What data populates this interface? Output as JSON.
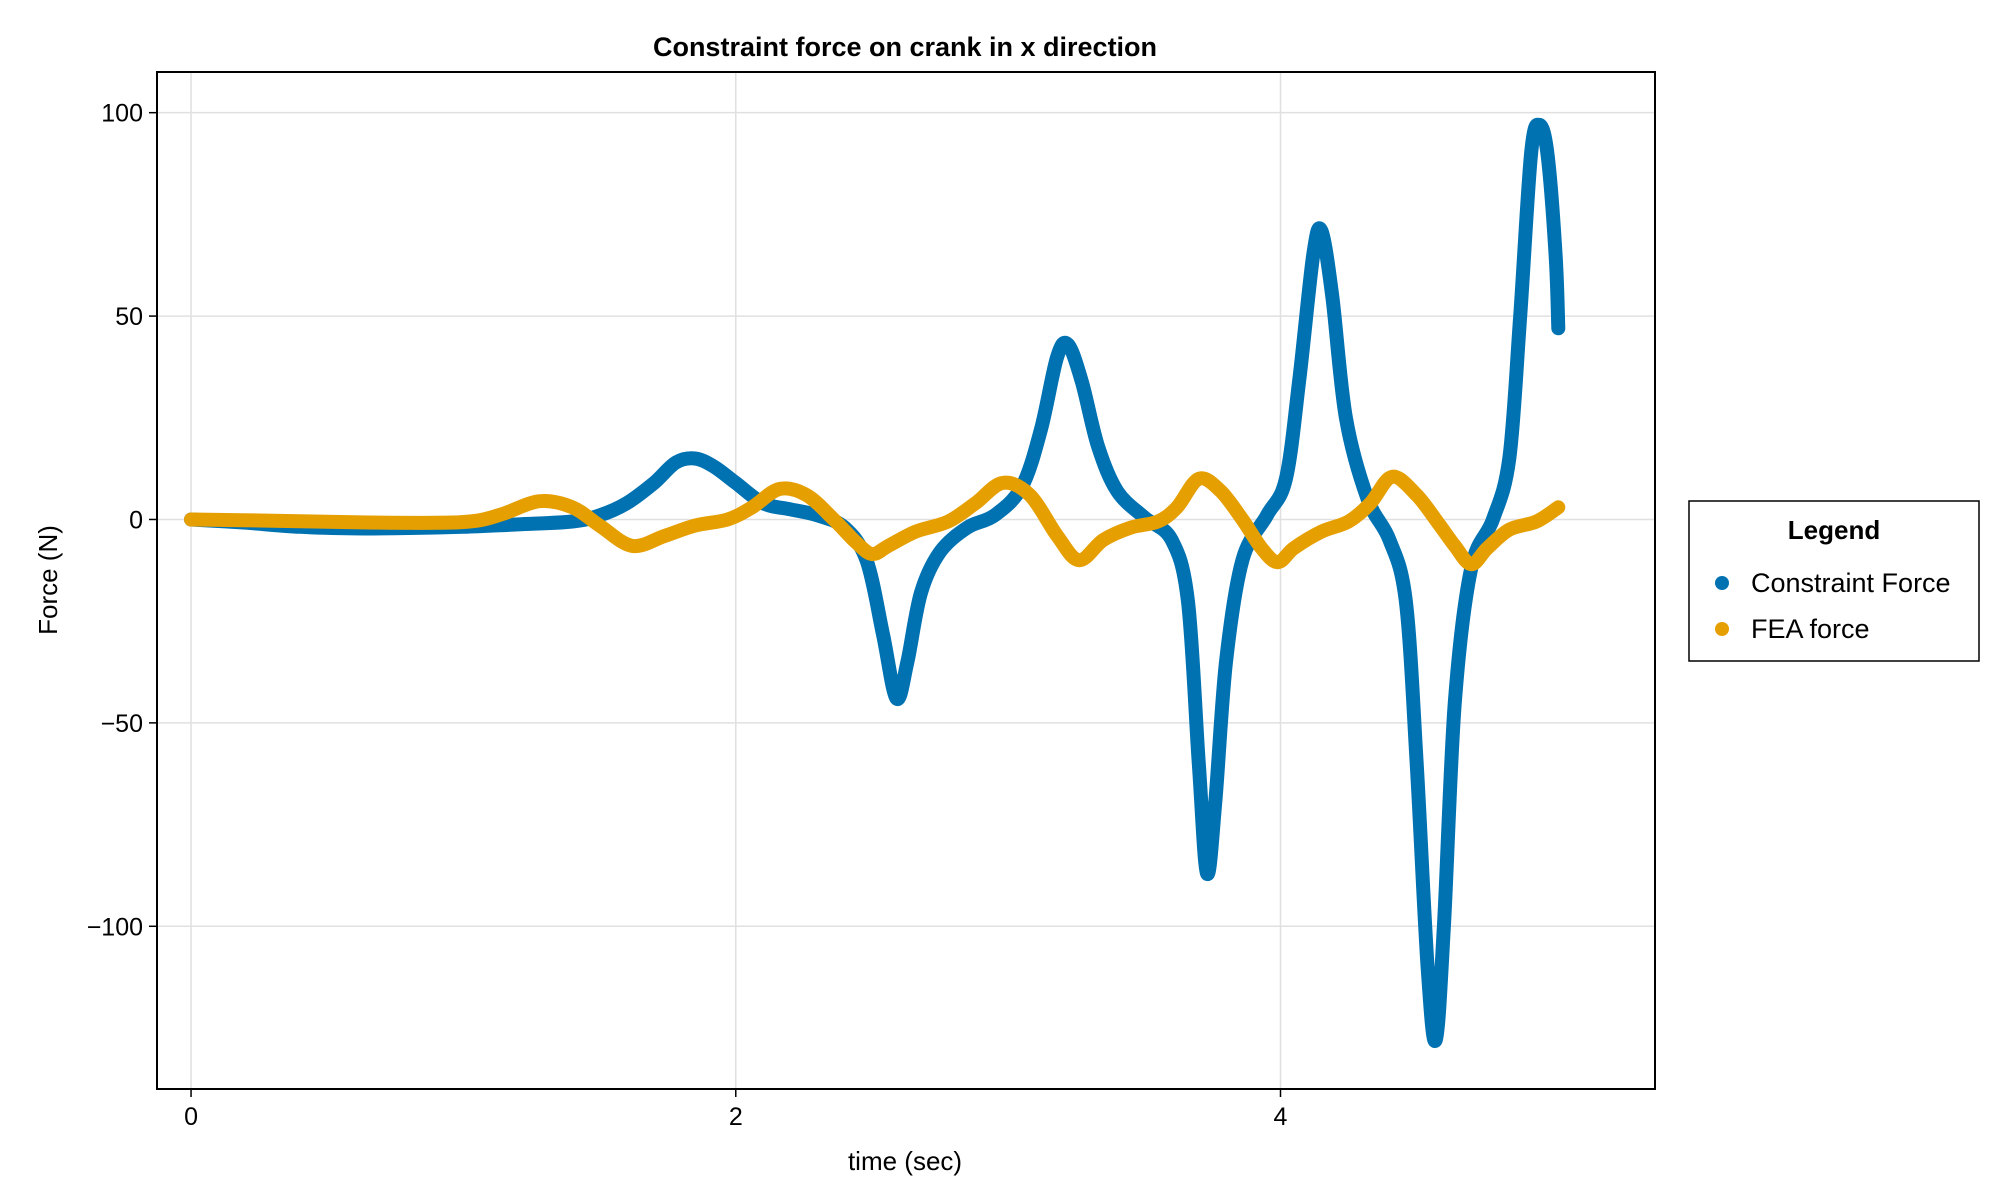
{
  "chart_data": {
    "type": "line",
    "title": "Constraint force on crank in x direction",
    "xlabel": "time (sec)",
    "ylabel": "Force (N)",
    "xlim": [
      -0.125,
      5.375
    ],
    "ylim": [
      -140,
      110
    ],
    "xticks": [
      0,
      2,
      4
    ],
    "xtick_labels": [
      "0",
      "2",
      "4"
    ],
    "yticks": [
      -100,
      -50,
      0,
      50,
      100
    ],
    "ytick_labels": [
      "−100",
      "−50",
      "0",
      "50",
      "100"
    ],
    "grid": true,
    "legend": {
      "title": "Legend",
      "placement": "right"
    },
    "series": [
      {
        "name": "Constraint Force",
        "color": "#0072B2",
        "points": [
          [
            0.0,
            0
          ],
          [
            0.2,
            -0.8
          ],
          [
            0.4,
            -1.8
          ],
          [
            0.6,
            -2.2
          ],
          [
            0.8,
            -2.1
          ],
          [
            1.0,
            -1.8
          ],
          [
            1.2,
            -1.2
          ],
          [
            1.4,
            -0.5
          ],
          [
            1.5,
            1
          ],
          [
            1.6,
            4
          ],
          [
            1.7,
            9
          ],
          [
            1.78,
            14
          ],
          [
            1.85,
            15
          ],
          [
            1.92,
            13
          ],
          [
            2.0,
            9
          ],
          [
            2.1,
            4
          ],
          [
            2.2,
            2.5
          ],
          [
            2.3,
            1
          ],
          [
            2.4,
            -2
          ],
          [
            2.48,
            -10
          ],
          [
            2.54,
            -28
          ],
          [
            2.59,
            -44
          ],
          [
            2.63,
            -35
          ],
          [
            2.68,
            -18
          ],
          [
            2.75,
            -8
          ],
          [
            2.85,
            -2
          ],
          [
            2.95,
            1
          ],
          [
            3.05,
            8
          ],
          [
            3.12,
            22
          ],
          [
            3.18,
            40
          ],
          [
            3.22,
            43
          ],
          [
            3.27,
            34
          ],
          [
            3.33,
            18
          ],
          [
            3.4,
            7
          ],
          [
            3.5,
            0.5
          ],
          [
            3.6,
            -5
          ],
          [
            3.66,
            -20
          ],
          [
            3.7,
            -60
          ],
          [
            3.73,
            -87
          ],
          [
            3.76,
            -70
          ],
          [
            3.8,
            -35
          ],
          [
            3.86,
            -10
          ],
          [
            3.95,
            1
          ],
          [
            4.02,
            10
          ],
          [
            4.07,
            35
          ],
          [
            4.12,
            65
          ],
          [
            4.15,
            71
          ],
          [
            4.19,
            55
          ],
          [
            4.24,
            25
          ],
          [
            4.32,
            5
          ],
          [
            4.4,
            -5
          ],
          [
            4.46,
            -20
          ],
          [
            4.5,
            -60
          ],
          [
            4.54,
            -110
          ],
          [
            4.57,
            -128
          ],
          [
            4.6,
            -100
          ],
          [
            4.64,
            -45
          ],
          [
            4.7,
            -12
          ],
          [
            4.78,
            0
          ],
          [
            4.84,
            15
          ],
          [
            4.88,
            50
          ],
          [
            4.92,
            90
          ],
          [
            4.95,
            97
          ],
          [
            4.98,
            90
          ],
          [
            5.01,
            65
          ],
          [
            5.02,
            47
          ]
        ]
      },
      {
        "name": "FEA force",
        "color": "#E69F00",
        "points": [
          [
            0.0,
            0
          ],
          [
            0.3,
            -0.3
          ],
          [
            0.6,
            -0.7
          ],
          [
            0.9,
            -0.8
          ],
          [
            1.05,
            -0.3
          ],
          [
            1.15,
            1.5
          ],
          [
            1.28,
            4.5
          ],
          [
            1.4,
            3
          ],
          [
            1.5,
            -1.5
          ],
          [
            1.62,
            -6.5
          ],
          [
            1.74,
            -4
          ],
          [
            1.85,
            -1.5
          ],
          [
            1.97,
            0
          ],
          [
            2.06,
            3
          ],
          [
            2.16,
            7.5
          ],
          [
            2.26,
            6
          ],
          [
            2.36,
            0
          ],
          [
            2.44,
            -5.5
          ],
          [
            2.5,
            -8.5
          ],
          [
            2.56,
            -6.5
          ],
          [
            2.66,
            -3
          ],
          [
            2.78,
            -0.5
          ],
          [
            2.88,
            4
          ],
          [
            2.98,
            9
          ],
          [
            3.08,
            6
          ],
          [
            3.18,
            -4
          ],
          [
            3.26,
            -10
          ],
          [
            3.35,
            -5
          ],
          [
            3.45,
            -2
          ],
          [
            3.55,
            -0.5
          ],
          [
            3.62,
            3
          ],
          [
            3.7,
            10
          ],
          [
            3.78,
            7
          ],
          [
            3.86,
            0
          ],
          [
            3.93,
            -7
          ],
          [
            3.99,
            -10.5
          ],
          [
            4.05,
            -7
          ],
          [
            4.15,
            -3
          ],
          [
            4.25,
            -0.5
          ],
          [
            4.33,
            4
          ],
          [
            4.41,
            10.5
          ],
          [
            4.5,
            6
          ],
          [
            4.58,
            -1
          ],
          [
            4.64,
            -6.5
          ],
          [
            4.7,
            -11
          ],
          [
            4.76,
            -7
          ],
          [
            4.84,
            -2.5
          ],
          [
            4.94,
            -0.5
          ],
          [
            5.02,
            3
          ]
        ]
      }
    ]
  }
}
